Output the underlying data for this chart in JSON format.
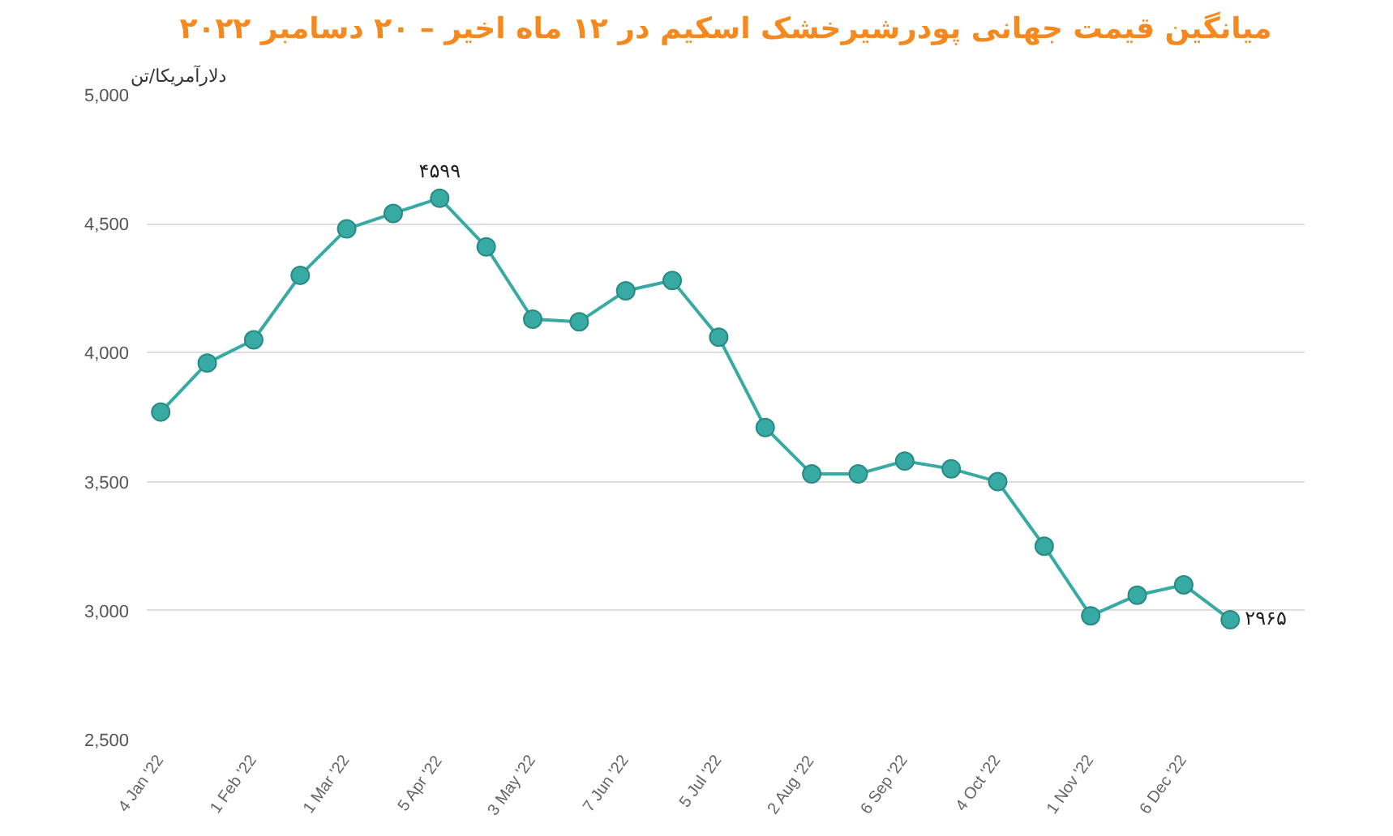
{
  "chart_data": {
    "type": "line",
    "title": "میانگین قیمت جهانی پودرشیرخشک اسکیم در ۱۲ ماه اخیر – ۲۰ دسامبر ۲۰۲۲",
    "ylabel": "دلارآمریکا/تن",
    "categories": [
      "4 Jan '22",
      null,
      "1 Feb '22",
      null,
      "1 Mar '22",
      null,
      "5 Apr '22",
      null,
      "3 May '22",
      null,
      "7 Jun '22",
      null,
      "5 Jul '22",
      null,
      "2 Aug '22",
      null,
      "6 Sep '22",
      null,
      "4 Oct '22",
      null,
      "1 Nov '22",
      null,
      "6 Dec '22",
      null
    ],
    "series": [
      {
        "color": "#36aaa3",
        "values": [
          3770,
          3960,
          4050,
          4300,
          4480,
          4540,
          4599,
          4410,
          4130,
          4120,
          4240,
          4280,
          4060,
          3710,
          3530,
          3530,
          3580,
          3550,
          3500,
          3250,
          2980,
          3060,
          3100,
          2965
        ],
        "value_labels": [
          null,
          null,
          null,
          null,
          null,
          null,
          "۴۵۹۹",
          null,
          null,
          null,
          null,
          null,
          null,
          null,
          null,
          null,
          null,
          null,
          null,
          null,
          null,
          null,
          null,
          "۲۹۶۵"
        ]
      }
    ],
    "ylim": [
      2500,
      5000
    ],
    "yticks": [
      {
        "value": 2500,
        "label": "2,500"
      },
      {
        "value": 3000,
        "label": "3,000"
      },
      {
        "value": 3500,
        "label": "3,500"
      },
      {
        "value": 4000,
        "label": "4,000"
      },
      {
        "value": 4500,
        "label": "4,500"
      },
      {
        "value": 5000,
        "label": "5,000"
      }
    ],
    "grid": "y",
    "marker": "circle",
    "line_style": "solid"
  }
}
